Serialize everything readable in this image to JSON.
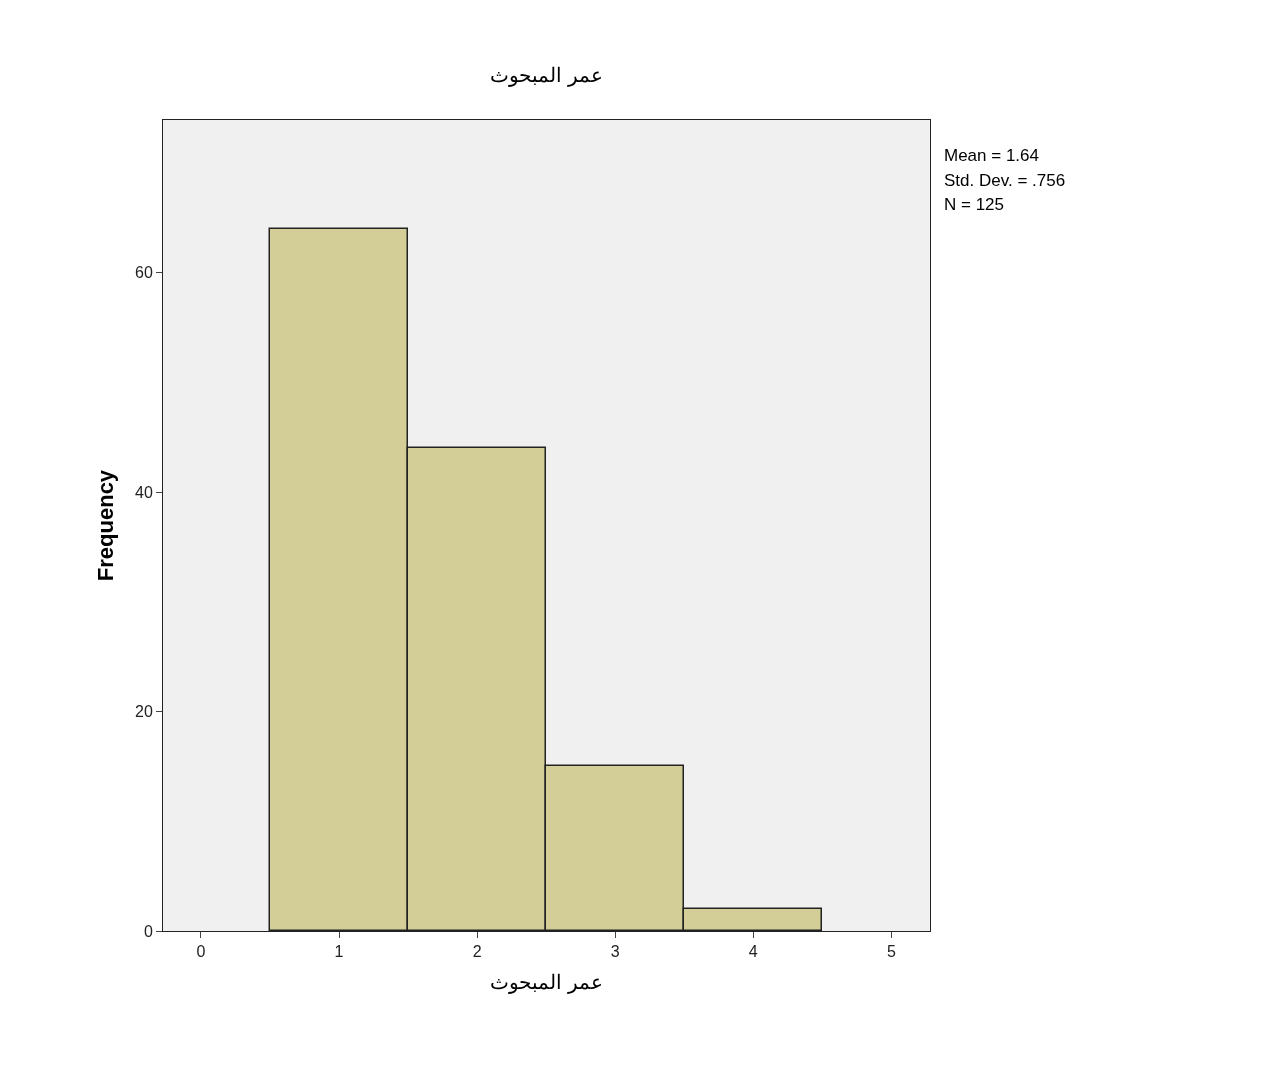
{
  "chart_data": {
    "type": "histogram",
    "title": "عمر المبحوث",
    "xlabel": "عمر المبحوث",
    "ylabel": "Frequency",
    "bins": [
      0.5,
      1.5,
      2.5,
      3.5,
      4.5
    ],
    "values": [
      64,
      44,
      15,
      2
    ],
    "color": "#d3ce97",
    "xlim": [
      -0.275,
      5.28
    ],
    "xticks": [
      0,
      1,
      2,
      3,
      4,
      5
    ],
    "ylim": [
      0,
      73.9
    ],
    "yticks": [
      0,
      20,
      40,
      60
    ],
    "grid": false,
    "annotations": [
      "Mean = 1.64",
      "Std. Dev. = .756",
      "N = 125"
    ]
  }
}
